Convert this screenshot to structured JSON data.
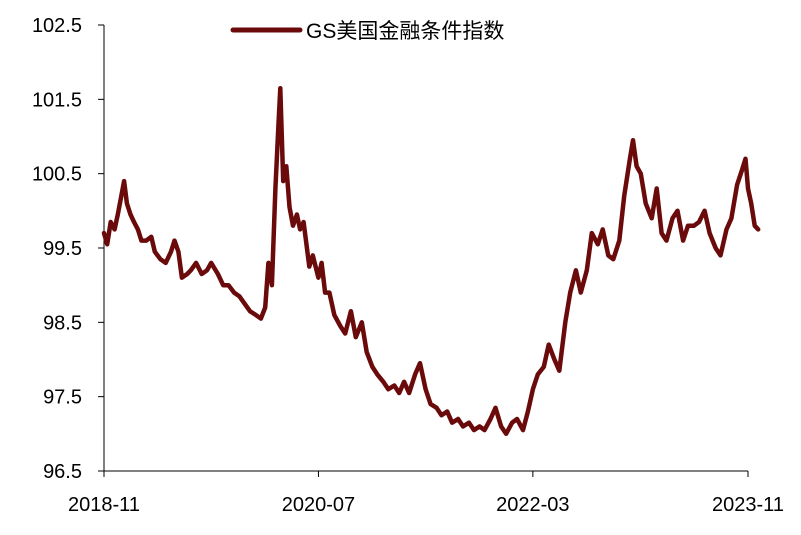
{
  "chart_data": {
    "type": "line",
    "title": "",
    "xlabel": "",
    "ylabel": "",
    "ylim": [
      96.5,
      102.5
    ],
    "y_ticks": [
      "96.5",
      "97.5",
      "98.5",
      "99.5",
      "100.5",
      "101.5",
      "102.5"
    ],
    "x_ticks": [
      "2018-11",
      "2020-07",
      "2022-03",
      "2023-11"
    ],
    "x_range": [
      "2018-11",
      "2023-11"
    ],
    "grid": false,
    "legend_position": "top-center",
    "series": [
      {
        "name": "GS美国金融条件指数",
        "color": "#6b0a0a",
        "points": [
          [
            "2018-11-01",
            99.7
          ],
          [
            "2018-11-10",
            99.55
          ],
          [
            "2018-11-20",
            99.85
          ],
          [
            "2018-12-01",
            99.75
          ],
          [
            "2018-12-10",
            99.95
          ],
          [
            "2018-12-20",
            100.2
          ],
          [
            "2018-12-28",
            100.4
          ],
          [
            "2019-01-05",
            100.1
          ],
          [
            "2019-01-15",
            99.95
          ],
          [
            "2019-01-25",
            99.85
          ],
          [
            "2019-02-05",
            99.75
          ],
          [
            "2019-02-15",
            99.6
          ],
          [
            "2019-03-01",
            99.6
          ],
          [
            "2019-03-15",
            99.65
          ],
          [
            "2019-03-25",
            99.45
          ],
          [
            "2019-04-10",
            99.35
          ],
          [
            "2019-04-25",
            99.3
          ],
          [
            "2019-05-10",
            99.45
          ],
          [
            "2019-05-20",
            99.6
          ],
          [
            "2019-05-31",
            99.45
          ],
          [
            "2019-06-10",
            99.1
          ],
          [
            "2019-06-25",
            99.15
          ],
          [
            "2019-07-05",
            99.2
          ],
          [
            "2019-07-20",
            99.3
          ],
          [
            "2019-08-05",
            99.15
          ],
          [
            "2019-08-20",
            99.2
          ],
          [
            "2019-09-01",
            99.3
          ],
          [
            "2019-09-20",
            99.15
          ],
          [
            "2019-10-05",
            99.0
          ],
          [
            "2019-10-20",
            99.0
          ],
          [
            "2019-11-05",
            98.9
          ],
          [
            "2019-11-20",
            98.85
          ],
          [
            "2019-12-05",
            98.75
          ],
          [
            "2019-12-20",
            98.65
          ],
          [
            "2020-01-05",
            98.6
          ],
          [
            "2020-01-20",
            98.55
          ],
          [
            "2020-02-01",
            98.7
          ],
          [
            "2020-02-10",
            99.3
          ],
          [
            "2020-02-20",
            99.0
          ],
          [
            "2020-03-01",
            100.3
          ],
          [
            "2020-03-10",
            101.2
          ],
          [
            "2020-03-15",
            101.65
          ],
          [
            "2020-03-23",
            100.4
          ],
          [
            "2020-04-01",
            100.6
          ],
          [
            "2020-04-10",
            100.05
          ],
          [
            "2020-04-20",
            99.8
          ],
          [
            "2020-05-01",
            99.95
          ],
          [
            "2020-05-10",
            99.75
          ],
          [
            "2020-05-20",
            99.85
          ],
          [
            "2020-06-05",
            99.25
          ],
          [
            "2020-06-15",
            99.4
          ],
          [
            "2020-07-01",
            99.1
          ],
          [
            "2020-07-10",
            99.3
          ],
          [
            "2020-07-20",
            98.9
          ],
          [
            "2020-08-01",
            98.9
          ],
          [
            "2020-08-15",
            98.6
          ],
          [
            "2020-09-01",
            98.45
          ],
          [
            "2020-09-15",
            98.35
          ],
          [
            "2020-10-01",
            98.65
          ],
          [
            "2020-10-15",
            98.3
          ],
          [
            "2020-11-01",
            98.5
          ],
          [
            "2020-11-15",
            98.1
          ],
          [
            "2020-12-01",
            97.9
          ],
          [
            "2020-12-15",
            97.8
          ],
          [
            "2021-01-01",
            97.7
          ],
          [
            "2021-01-15",
            97.6
          ],
          [
            "2021-02-01",
            97.65
          ],
          [
            "2021-02-15",
            97.55
          ],
          [
            "2021-03-01",
            97.7
          ],
          [
            "2021-03-15",
            97.55
          ],
          [
            "2021-04-01",
            97.8
          ],
          [
            "2021-04-15",
            97.95
          ],
          [
            "2021-05-01",
            97.6
          ],
          [
            "2021-05-15",
            97.4
          ],
          [
            "2021-06-01",
            97.35
          ],
          [
            "2021-06-15",
            97.25
          ],
          [
            "2021-07-01",
            97.3
          ],
          [
            "2021-07-15",
            97.15
          ],
          [
            "2021-08-01",
            97.2
          ],
          [
            "2021-08-15",
            97.1
          ],
          [
            "2021-09-01",
            97.15
          ],
          [
            "2021-09-15",
            97.05
          ],
          [
            "2021-10-01",
            97.1
          ],
          [
            "2021-10-15",
            97.05
          ],
          [
            "2021-11-01",
            97.2
          ],
          [
            "2021-11-15",
            97.35
          ],
          [
            "2021-12-01",
            97.1
          ],
          [
            "2021-12-15",
            97.0
          ],
          [
            "2022-01-01",
            97.15
          ],
          [
            "2022-01-15",
            97.2
          ],
          [
            "2022-02-01",
            97.05
          ],
          [
            "2022-02-15",
            97.3
          ],
          [
            "2022-03-01",
            97.6
          ],
          [
            "2022-03-15",
            97.8
          ],
          [
            "2022-04-01",
            97.9
          ],
          [
            "2022-04-15",
            98.2
          ],
          [
            "2022-05-01",
            98.0
          ],
          [
            "2022-05-15",
            97.85
          ],
          [
            "2022-06-01",
            98.5
          ],
          [
            "2022-06-15",
            98.9
          ],
          [
            "2022-07-01",
            99.2
          ],
          [
            "2022-07-15",
            98.9
          ],
          [
            "2022-08-01",
            99.2
          ],
          [
            "2022-08-15",
            99.7
          ],
          [
            "2022-09-01",
            99.55
          ],
          [
            "2022-09-15",
            99.75
          ],
          [
            "2022-10-01",
            99.4
          ],
          [
            "2022-10-15",
            99.35
          ],
          [
            "2022-11-01",
            99.6
          ],
          [
            "2022-11-15",
            100.2
          ],
          [
            "2022-12-01",
            100.7
          ],
          [
            "2022-12-10",
            100.95
          ],
          [
            "2022-12-20",
            100.6
          ],
          [
            "2023-01-01",
            100.5
          ],
          [
            "2023-01-15",
            100.1
          ],
          [
            "2023-02-01",
            99.9
          ],
          [
            "2023-02-15",
            100.3
          ],
          [
            "2023-03-01",
            99.7
          ],
          [
            "2023-03-15",
            99.6
          ],
          [
            "2023-04-01",
            99.9
          ],
          [
            "2023-04-15",
            100.0
          ],
          [
            "2023-05-01",
            99.6
          ],
          [
            "2023-05-15",
            99.8
          ],
          [
            "2023-06-01",
            99.8
          ],
          [
            "2023-06-15",
            99.85
          ],
          [
            "2023-07-01",
            100.0
          ],
          [
            "2023-07-15",
            99.7
          ],
          [
            "2023-08-01",
            99.5
          ],
          [
            "2023-08-15",
            99.4
          ],
          [
            "2023-09-01",
            99.75
          ],
          [
            "2023-09-15",
            99.9
          ],
          [
            "2023-10-01",
            100.35
          ],
          [
            "2023-10-15",
            100.55
          ],
          [
            "2023-10-25",
            100.7
          ],
          [
            "2023-11-01",
            100.3
          ],
          [
            "2023-11-10",
            100.1
          ],
          [
            "2023-11-20",
            99.8
          ],
          [
            "2023-11-30",
            99.75
          ]
        ]
      }
    ]
  }
}
